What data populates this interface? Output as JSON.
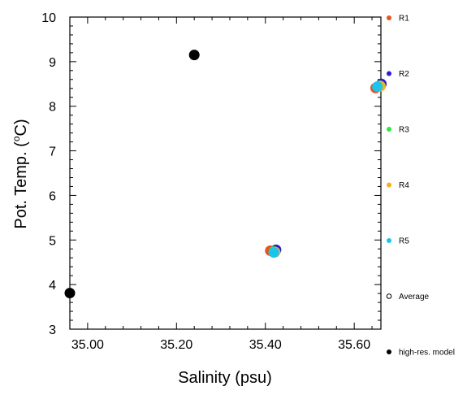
{
  "chart_data": {
    "type": "scatter",
    "xlabel": "Salinity (psu)",
    "ylabel": "Pot. Temp. (",
    "ylabel_unit_symbol": "o",
    "ylabel_unit_letter": "C)",
    "xlim": [
      34.96,
      35.66
    ],
    "ylim": [
      3,
      10
    ],
    "x_ticks": [
      35.0,
      35.2,
      35.4,
      35.6
    ],
    "x_tick_labels": [
      "35.00",
      "35.20",
      "35.40",
      "35.60"
    ],
    "y_ticks": [
      3,
      4,
      5,
      6,
      7,
      8,
      9,
      10
    ],
    "y_tick_labels": [
      "3",
      "4",
      "5",
      "6",
      "7",
      "8",
      "9",
      "10"
    ],
    "grid": false,
    "legend_position": "right",
    "legend": [
      {
        "name": "R1",
        "color": "#e8531f",
        "marker": "filled"
      },
      {
        "name": "R2",
        "color": "#2a1ad8",
        "marker": "filled"
      },
      {
        "name": "R3",
        "color": "#2bea41",
        "marker": "filled"
      },
      {
        "name": "R4",
        "color": "#f2b21c",
        "marker": "filled"
      },
      {
        "name": "R5",
        "color": "#1cc3ec",
        "marker": "filled"
      },
      {
        "name": "Average",
        "color": "#000000",
        "marker": "open"
      },
      {
        "name": "high-res. model",
        "color": "#000000",
        "marker": "filled"
      }
    ],
    "series": [
      {
        "name": "R1",
        "color": "#e8531f",
        "points": [
          {
            "x": 35.411,
            "y": 4.76
          },
          {
            "x": 35.648,
            "y": 8.41
          }
        ]
      },
      {
        "name": "R2",
        "color": "#2a1ad8",
        "points": [
          {
            "x": 35.424,
            "y": 4.78
          },
          {
            "x": 35.661,
            "y": 8.5
          }
        ]
      },
      {
        "name": "R3",
        "color": "#2bea41",
        "points": [
          {
            "x": 35.419,
            "y": 4.74
          },
          {
            "x": 35.658,
            "y": 8.46
          }
        ]
      },
      {
        "name": "R4",
        "color": "#f2b21c",
        "points": [
          {
            "x": 35.422,
            "y": 4.73
          },
          {
            "x": 35.659,
            "y": 8.45
          }
        ]
      },
      {
        "name": "R5",
        "color": "#1cc3ec",
        "points": [
          {
            "x": 35.419,
            "y": 4.72
          },
          {
            "x": 35.652,
            "y": 8.44
          }
        ]
      },
      {
        "name": "high-res. model",
        "color": "#000000",
        "points": [
          {
            "x": 34.96,
            "y": 3.81
          },
          {
            "x": 35.24,
            "y": 9.15
          }
        ]
      }
    ]
  }
}
